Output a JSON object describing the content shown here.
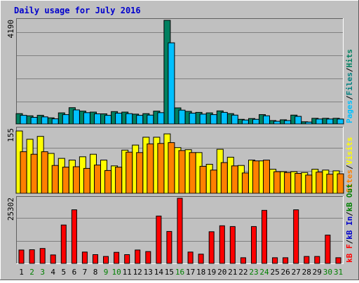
{
  "chart_data": {
    "type": "bar",
    "title": "Daily usage for July 2016",
    "categories": [
      "1",
      "2",
      "3",
      "4",
      "5",
      "6",
      "7",
      "8",
      "9",
      "10",
      "11",
      "12",
      "13",
      "14",
      "15",
      "16",
      "17",
      "18",
      "19",
      "20",
      "21",
      "22",
      "23",
      "24",
      "25",
      "26",
      "27",
      "28",
      "29",
      "30",
      "31"
    ],
    "weekend_days": [
      "2",
      "3",
      "9",
      "10",
      "16",
      "23",
      "24",
      "30",
      "31"
    ],
    "colors": {
      "background": "#c0c0c0",
      "title": "#0000cc",
      "hits": "#008060",
      "files": "#00a0e0",
      "pages": "#00c0ff",
      "visits": "#ffff00",
      "sites": "#ff8000",
      "kb_in": "#0000cc",
      "kb_out": "#008000",
      "kb_f": "#ff0000",
      "weekend_label": "#008000",
      "weekday_label": "#000000"
    },
    "panels": [
      {
        "name": "hits-files-pages",
        "ymax_label": "4190",
        "ymax": 4190,
        "legend": [
          {
            "text": "Pages",
            "color": "#00c0ff"
          },
          {
            "text": "Files",
            "color": "#008080"
          },
          {
            "text": "Hits",
            "color": "#008060"
          }
        ],
        "series": [
          {
            "name": "Hits",
            "color": "#008060",
            "values": [
              420,
              330,
              350,
              250,
              450,
              660,
              520,
              480,
              410,
              500,
              480,
              400,
              420,
              520,
              4190,
              650,
              510,
              470,
              450,
              530,
              420,
              190,
              220,
              380,
              140,
              170,
              360,
              90,
              230,
              230,
              230
            ]
          },
          {
            "name": "Pages",
            "color": "#00c0ff",
            "values": [
              350,
              270,
              290,
              210,
              380,
              570,
              460,
              410,
              350,
              440,
              420,
              350,
              360,
              460,
              3280,
              560,
              440,
              400,
              380,
              470,
              360,
              160,
              190,
              330,
              110,
              140,
              310,
              80,
              200,
              200,
              200
            ]
          }
        ]
      },
      {
        "name": "visits-sites",
        "ymax_label": "155",
        "ymax": 155,
        "legend": [
          {
            "text": "Sites",
            "color": "#ff8000"
          },
          {
            "text": "Visits",
            "color": "#ffff00"
          }
        ],
        "series": [
          {
            "name": "Visits",
            "color": "#ffff00",
            "values": [
              150,
              130,
              137,
              96,
              84,
              80,
              88,
              94,
              80,
              66,
              104,
              116,
              135,
              135,
              143,
              110,
              105,
              98,
              70,
              106,
              87,
              67,
              80,
              78,
              58,
              52,
              52,
              50,
              58,
              56,
              54
            ]
          },
          {
            "name": "Sites",
            "color": "#ff8000",
            "values": [
              100,
              94,
              100,
              67,
              63,
              64,
              60,
              68,
              55,
              63,
              99,
              98,
              119,
              120,
              122,
              103,
              98,
              65,
              56,
              74,
              66,
              49,
              78,
              80,
              52,
              50,
              48,
              44,
              51,
              46,
              47
            ]
          }
        ]
      },
      {
        "name": "kbytes",
        "ymax_label": "25302",
        "ymax": 25302,
        "legend": [
          {
            "text": "kB F",
            "color": "#ff0000"
          },
          {
            "text": "kB In",
            "color": "#0000cc"
          },
          {
            "text": "kB Out",
            "color": "#008000"
          }
        ],
        "series": [
          {
            "name": "kB F",
            "color": "#ff0000",
            "values": [
              5200,
              5300,
              5800,
              3300,
              14900,
              20800,
              4400,
              3400,
              2700,
              4300,
              3400,
              5200,
              4600,
              18400,
              12400,
              25302,
              4400,
              3600,
              12300,
              14600,
              14300,
              2200,
              14300,
              20600,
              2200,
              2200,
              20800,
              2700,
              2700,
              11000,
              2200
            ]
          }
        ]
      }
    ]
  }
}
